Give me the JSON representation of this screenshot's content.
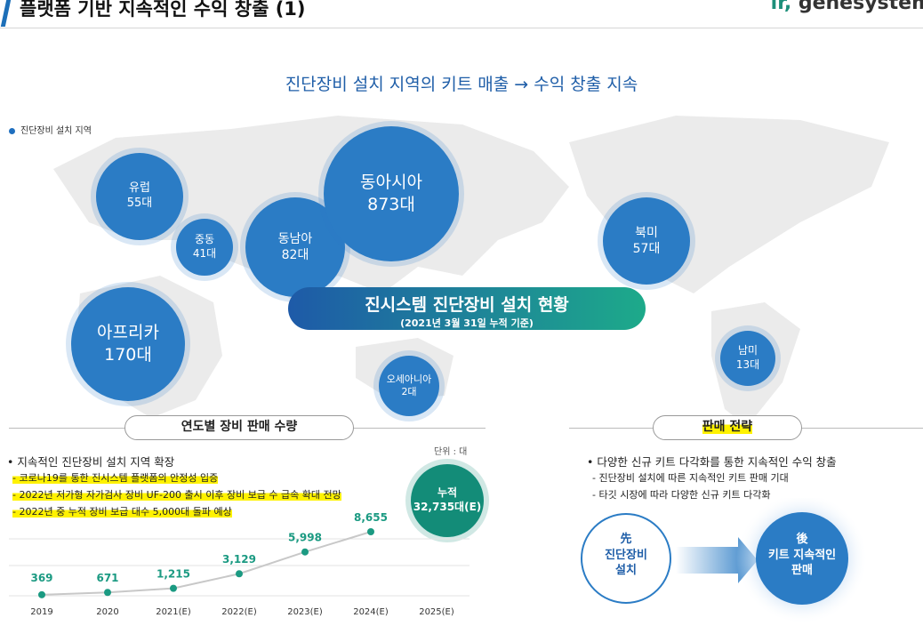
{
  "header": {
    "title": "플랫폼 기반 지속적인 수익 창출 (1)",
    "logo": "genesystem"
  },
  "headline": "진단장비 설치 지역의 키트 매출 → 수익 창출 지속",
  "legend_label": "진단장비 설치 지역",
  "regions": [
    {
      "name": "유럽",
      "count": "55대"
    },
    {
      "name": "중동",
      "count": "41대"
    },
    {
      "name": "동남아",
      "count": "82대"
    },
    {
      "name": "동아시아",
      "count": "873대"
    },
    {
      "name": "아프리카",
      "count": "170대"
    },
    {
      "name": "오세아니아",
      "count": "2대"
    },
    {
      "name": "북미",
      "count": "57대"
    },
    {
      "name": "남미",
      "count": "13대"
    }
  ],
  "banner": {
    "title": "진시스템 진단장비 설치 현황",
    "subtitle": "(2021년 3월 31일 누적 기준)"
  },
  "sales": {
    "section_title": "연도별 장비 판매 수량",
    "unit": "단위 : 대",
    "bullet": "• 지속적인 진단장비 설치 지역 확장",
    "points": [
      "- 코로나19를 통한 진시스템 플랫폼의 안정성 입증",
      "- 2022년 저가형 자가검사 장비 UF-200 출시 이후 장비 보급 수 급속 확대 전망",
      "- 2022년 중 누적 장비 보급 대수 5,000대 돌파 예상"
    ],
    "cumulative_label": "누적",
    "cumulative_value": "32,735대(E)"
  },
  "chart_data": {
    "type": "line",
    "categories": [
      "2019",
      "2020",
      "2021(E)",
      "2022(E)",
      "2023(E)",
      "2024(E)",
      "2025(E)"
    ],
    "values": [
      369,
      671,
      1215,
      3129,
      5998,
      8655,
      null
    ],
    "labels": [
      "369",
      "671",
      "1,215",
      "3,129",
      "5,998",
      "8,655"
    ],
    "colors": {
      "line": "#c8c8c8",
      "marker": "#1b9a82",
      "label": "#1b9a82"
    }
  },
  "strategy": {
    "section_title": "판매 전략",
    "bullet": "• 다양한 신규 키트 다각화를 통한 지속적인 수익 창출",
    "points": [
      "- 진단장비 설치에 따른 지속적인 키트 판매 기대",
      "- 타깃 시장에 따라 다양한 신규 키트 다각화"
    ],
    "step1": {
      "top": "先",
      "l1": "진단장비",
      "l2": "설치"
    },
    "step2": {
      "top": "後",
      "l1": "키트 지속적인",
      "l2": "판매"
    }
  },
  "colors": {
    "primary": "#2b7cc5",
    "accent": "#1b9a82",
    "highlight": "#fff200"
  }
}
